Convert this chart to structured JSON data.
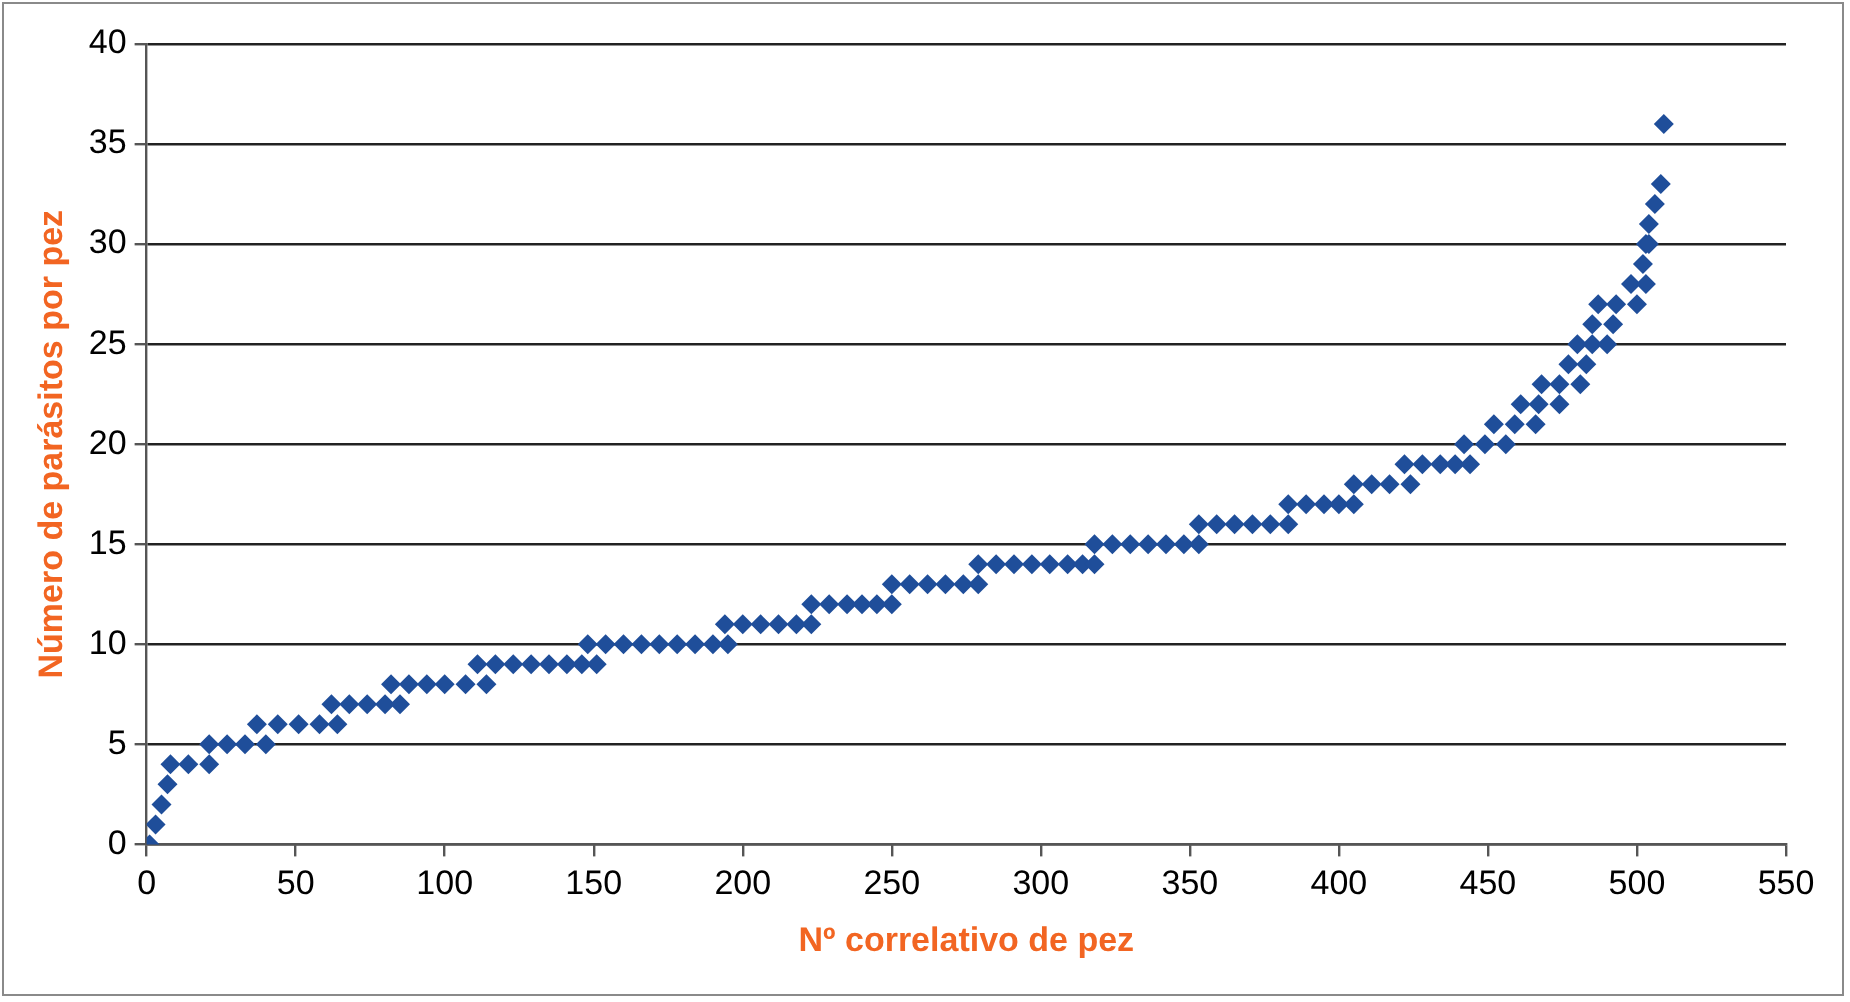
{
  "chart_data": {
    "type": "scatter",
    "xlabel": "Nº correlativo de pez",
    "ylabel": "Número de parásitos por pez",
    "marker": "diamond",
    "grid": "y",
    "xlim": [
      0,
      550
    ],
    "xticks": [
      0,
      50,
      100,
      150,
      200,
      250,
      300,
      350,
      400,
      450,
      500,
      550
    ],
    "ylim": [
      0,
      40
    ],
    "yticks": [
      0,
      5,
      10,
      15,
      20,
      25,
      30,
      35,
      40
    ],
    "series": [
      {
        "color": "#1f4e9a",
        "x": [
          1,
          3,
          5,
          7,
          8,
          14,
          21,
          21,
          27,
          33,
          40,
          37,
          44,
          51,
          58,
          64,
          62,
          68,
          74,
          80,
          85,
          82,
          88,
          94,
          100,
          107,
          114,
          111,
          117,
          123,
          129,
          135,
          141,
          146,
          151,
          148,
          154,
          160,
          166,
          172,
          178,
          184,
          190,
          195,
          194,
          200,
          206,
          212,
          218,
          223,
          223,
          229,
          235,
          240,
          245,
          250,
          250,
          256,
          262,
          268,
          274,
          279,
          279,
          285,
          291,
          297,
          303,
          309,
          314,
          318,
          318,
          324,
          330,
          336,
          342,
          348,
          353,
          353,
          359,
          365,
          371,
          377,
          383,
          383,
          389,
          395,
          400,
          405,
          405,
          411,
          417,
          424,
          422,
          428,
          434,
          439,
          444,
          442,
          449,
          456,
          452,
          459,
          466,
          461,
          467,
          474,
          468,
          474,
          481,
          477,
          483,
          480,
          485,
          490,
          485,
          492,
          487,
          493,
          500,
          498,
          503,
          502,
          503,
          504,
          504,
          506,
          508,
          509
        ],
        "values": [
          0,
          1,
          2,
          3,
          4,
          4,
          4,
          5,
          5,
          5,
          5,
          6,
          6,
          6,
          6,
          6,
          7,
          7,
          7,
          7,
          7,
          8,
          8,
          8,
          8,
          8,
          8,
          9,
          9,
          9,
          9,
          9,
          9,
          9,
          9,
          10,
          10,
          10,
          10,
          10,
          10,
          10,
          10,
          10,
          11,
          11,
          11,
          11,
          11,
          11,
          12,
          12,
          12,
          12,
          12,
          12,
          13,
          13,
          13,
          13,
          13,
          13,
          14,
          14,
          14,
          14,
          14,
          14,
          14,
          14,
          15,
          15,
          15,
          15,
          15,
          15,
          15,
          16,
          16,
          16,
          16,
          16,
          16,
          17,
          17,
          17,
          17,
          17,
          18,
          18,
          18,
          18,
          19,
          19,
          19,
          19,
          19,
          20,
          20,
          20,
          21,
          21,
          21,
          22,
          22,
          22,
          23,
          23,
          23,
          24,
          24,
          25,
          25,
          25,
          26,
          26,
          27,
          27,
          27,
          28,
          28,
          29,
          30,
          30,
          31,
          32,
          33,
          36
        ]
      }
    ]
  }
}
